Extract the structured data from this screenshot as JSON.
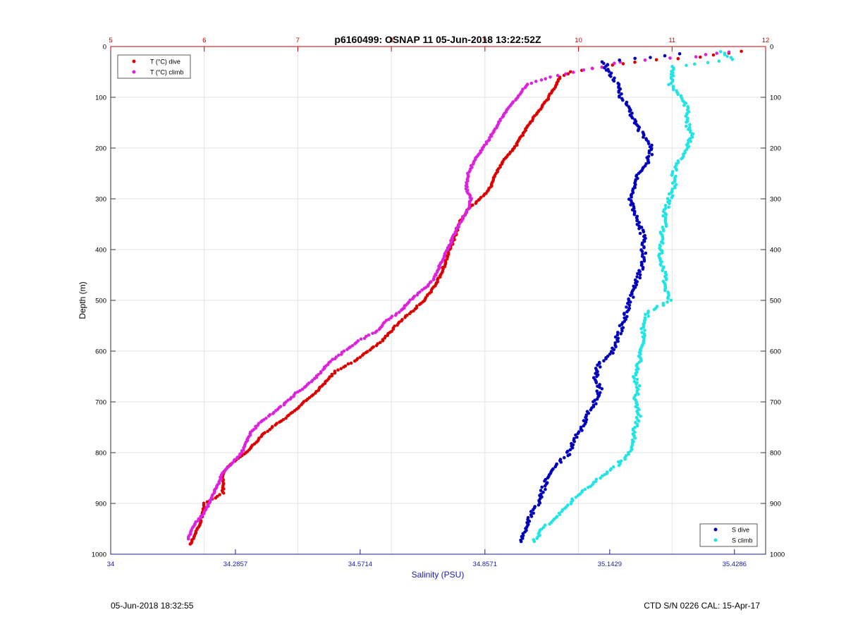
{
  "chart_data": {
    "type": "scatter",
    "title": "p6160499: OSNAP 11 05-Jun-2018 13:22:52Z",
    "xlabel": "Salinity (PSU)",
    "ylabel": "Depth (m)",
    "top_axis": {
      "label": "",
      "range": [
        5,
        12
      ],
      "ticks": [
        "5",
        "6",
        "7",
        "8",
        "9",
        "10",
        "11",
        "12"
      ],
      "color": "#cc0000"
    },
    "bottom_axis": {
      "range": [
        34,
        35.5
      ],
      "ticks": [
        "34",
        "34.2857",
        "34.5714",
        "34.8571",
        "35.1429",
        "35.4286"
      ],
      "tick_values": [
        34,
        34.2857,
        34.5714,
        34.8571,
        35.1429,
        35.4286
      ],
      "color": "#1a1aa6"
    },
    "y_axis": {
      "range": [
        0,
        1000
      ],
      "reversed": true,
      "ticks": [
        "0",
        "100",
        "200",
        "300",
        "400",
        "500",
        "600",
        "700",
        "800",
        "900",
        "1000"
      ]
    },
    "grid": true,
    "legend_top_left": [
      {
        "name": "T (°C) dive",
        "color": "#dd0000"
      },
      {
        "name": "T (°C) climb",
        "color": "#dd22dd"
      }
    ],
    "legend_bottom_right": [
      {
        "name": "S dive",
        "color": "#0000bb"
      },
      {
        "name": "S climb",
        "color": "#22e4e4"
      }
    ],
    "series": [
      {
        "name": "T (°C) dive",
        "axis": "top",
        "color": "#dd0000",
        "depth": [
          10,
          20,
          30,
          40,
          50,
          60,
          80,
          100,
          120,
          140,
          160,
          180,
          200,
          220,
          250,
          280,
          300,
          320,
          350,
          380,
          400,
          430,
          460,
          480,
          500,
          520,
          540,
          560,
          580,
          600,
          620,
          640,
          660,
          680,
          700,
          720,
          740,
          760,
          780,
          800,
          820,
          840,
          860,
          880,
          900,
          920,
          940,
          960,
          980
        ],
        "values": [
          11.75,
          11.3,
          10.6,
          10.25,
          9.92,
          9.8,
          9.75,
          9.68,
          9.6,
          9.52,
          9.45,
          9.38,
          9.32,
          9.22,
          9.12,
          9.05,
          8.95,
          8.82,
          8.72,
          8.67,
          8.62,
          8.57,
          8.5,
          8.43,
          8.35,
          8.23,
          8.1,
          8.0,
          7.9,
          7.75,
          7.6,
          7.4,
          7.3,
          7.2,
          7.07,
          6.95,
          6.8,
          6.65,
          6.55,
          6.45,
          6.3,
          6.2,
          6.2,
          6.2,
          6.0,
          5.98,
          5.95,
          5.9,
          5.85
        ]
      },
      {
        "name": "T (°C) climb",
        "axis": "top",
        "color": "#dd22dd",
        "depth": [
          10,
          20,
          30,
          40,
          50,
          60,
          75,
          100,
          120,
          140,
          160,
          180,
          200,
          220,
          250,
          280,
          300,
          320,
          350,
          380,
          400,
          430,
          460,
          480,
          500,
          520,
          540,
          560,
          580,
          600,
          620,
          640,
          660,
          680,
          700,
          720,
          740,
          760,
          780,
          800,
          820,
          840,
          860,
          880,
          900,
          920,
          940,
          960,
          970
        ],
        "values": [
          11.6,
          11.25,
          10.45,
          10.25,
          9.95,
          9.7,
          9.45,
          9.35,
          9.25,
          9.18,
          9.12,
          9.05,
          8.98,
          8.9,
          8.82,
          8.8,
          8.85,
          8.82,
          8.72,
          8.65,
          8.6,
          8.52,
          8.45,
          8.33,
          8.2,
          8.1,
          7.95,
          7.85,
          7.65,
          7.5,
          7.35,
          7.25,
          7.15,
          7.0,
          6.88,
          6.75,
          6.6,
          6.5,
          6.45,
          6.4,
          6.3,
          6.2,
          6.15,
          6.1,
          6.05,
          6.0,
          5.9,
          5.85,
          5.83
        ]
      },
      {
        "name": "S dive",
        "axis": "bottom",
        "color": "#0000bb",
        "depth": [
          15,
          30,
          50,
          75,
          100,
          125,
          150,
          175,
          200,
          225,
          250,
          275,
          300,
          325,
          350,
          375,
          400,
          425,
          450,
          475,
          500,
          525,
          550,
          575,
          600,
          625,
          650,
          675,
          700,
          725,
          750,
          775,
          800,
          825,
          850,
          875,
          900,
          925,
          950,
          975
        ],
        "values": [
          35.3,
          35.13,
          35.14,
          35.16,
          35.17,
          35.19,
          35.2,
          35.22,
          35.24,
          35.23,
          35.21,
          35.2,
          35.19,
          35.2,
          35.21,
          35.22,
          35.22,
          35.22,
          35.21,
          35.2,
          35.19,
          35.18,
          35.17,
          35.16,
          35.15,
          35.12,
          35.11,
          35.12,
          35.11,
          35.09,
          35.08,
          35.06,
          35.05,
          35.02,
          35.0,
          34.99,
          34.98,
          34.96,
          34.95,
          34.94
        ]
      },
      {
        "name": "S climb",
        "axis": "bottom",
        "color": "#22e4e4",
        "depth": [
          10,
          25,
          40,
          75,
          100,
          125,
          150,
          175,
          200,
          225,
          250,
          275,
          300,
          325,
          350,
          375,
          400,
          425,
          450,
          475,
          500,
          525,
          550,
          575,
          600,
          625,
          650,
          675,
          700,
          725,
          750,
          775,
          800,
          825,
          850,
          875,
          900,
          925,
          950,
          975
        ],
        "values": [
          35.4,
          35.42,
          35.29,
          35.28,
          35.31,
          35.32,
          35.32,
          35.33,
          35.32,
          35.3,
          35.29,
          35.29,
          35.28,
          35.27,
          35.27,
          35.26,
          35.26,
          35.26,
          35.27,
          35.27,
          35.28,
          35.23,
          35.22,
          35.22,
          35.21,
          35.21,
          35.2,
          35.21,
          35.2,
          35.21,
          35.2,
          35.2,
          35.19,
          35.16,
          35.12,
          35.08,
          35.05,
          35.02,
          34.99,
          34.97
        ]
      }
    ]
  },
  "footer": {
    "timestamp": "05-Jun-2018 18:32:55",
    "ctd_info": "CTD S/N 0226  CAL: 15-Apr-17"
  }
}
